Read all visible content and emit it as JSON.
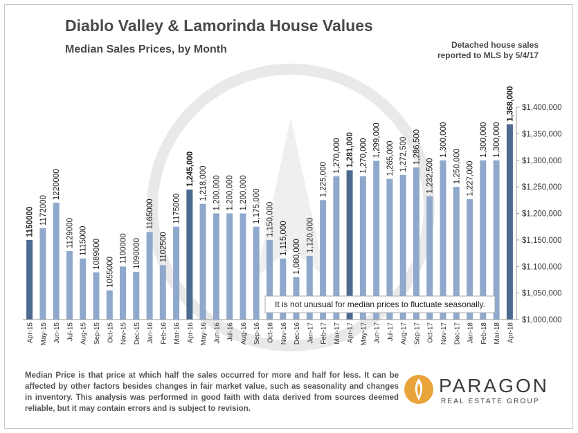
{
  "header": {
    "title": "Diablo Valley & Lamorinda House Values",
    "subtitle": "Median Sales Prices, by Month",
    "note_line1": "Detached house sales",
    "note_line2": "reported to MLS by 5/4/17"
  },
  "colors": {
    "bar": "#8fa8cc",
    "bar_highlight": "#4d6a91",
    "axis": "#999999",
    "text": "#4a4a4a",
    "logo_gold": "#e8a33b"
  },
  "chart_data": {
    "type": "bar",
    "ylim": [
      1000000,
      1400000
    ],
    "yticks": [
      "$1,000,000",
      "$1,050,000",
      "$1,100,000",
      "$1,150,000",
      "$1,200,000",
      "$1,250,000",
      "$1,300,000",
      "$1,350,000",
      "$1,400,000"
    ],
    "grid": false,
    "categories": [
      "Apr-15",
      "May-15",
      "Jun-15",
      "Jul-15",
      "Aug-15",
      "Sep-15",
      "Oct-15",
      "Nov-15",
      "Dec-15",
      "Jan-16",
      "Feb-16",
      "Mar-16",
      "Apr-16",
      "May-16",
      "Jun-16",
      "Jul-16",
      "Aug-16",
      "Sep-16",
      "Oct-16",
      "Nov-16",
      "Dec-16",
      "Jan-17",
      "Feb-17",
      "Mar-17",
      "Apr-17",
      "May-17",
      "Jun-17",
      "Jul-17",
      "Aug-17",
      "Sep-17",
      "Oct-17",
      "Nov-17",
      "Dec-17",
      "Jan-18",
      "Feb-18",
      "Mar-18",
      "Apr-18"
    ],
    "values": [
      1150000,
      1172000,
      1220000,
      1129000,
      1115000,
      1089000,
      1055000,
      1100000,
      1090000,
      1165000,
      1102500,
      1175000,
      1245000,
      1218000,
      1200000,
      1200000,
      1200000,
      1175000,
      1150000,
      1115000,
      1080000,
      1120000,
      1225000,
      1270000,
      1281000,
      1270000,
      1299000,
      1265000,
      1272500,
      1286500,
      1232500,
      1300000,
      1250000,
      1227000,
      1300000,
      1300000,
      1368000
    ],
    "labels": [
      "1150000",
      "1172000",
      "1220000",
      "1129000",
      "1115000",
      "1089000",
      "1055000",
      "1100000",
      "1090000",
      "1165000",
      "1102500",
      "1175000",
      "1,245,000",
      "1,218,000",
      "1,200,000",
      "1,200,000",
      "1,200,000",
      "1,175,000",
      "1,150,000",
      "1,115,000",
      "1,080,000",
      "1,120,000",
      "1,225,000",
      "1,270,000",
      "1,281,000",
      "1,270,000",
      "1,299,000",
      "1,265,000",
      "1,272,500",
      "1,286,500",
      "1,232,500",
      "1,300,000",
      "1,250,000",
      "1,227,000",
      "1,300,000",
      "1,300,000",
      "1,368,000"
    ],
    "highlighted": [
      "Apr-15",
      "Apr-16",
      "Apr-17",
      "Apr-18"
    ],
    "annotation": "It is not unusual for median prices to fluctuate seasonally."
  },
  "footnote": "Median Price is that price at which half the sales occurred for more and half for less. It can be affected by other factors besides changes in fair market value, such as seasonality and changes in inventory. This analysis was performed in good faith with data derived from sources deemed reliable, but it may contain errors and is subject to revision.",
  "logo": {
    "name": "PARAGON",
    "tagline": "REAL ESTATE GROUP",
    "icon": "paragon-flame-icon"
  }
}
